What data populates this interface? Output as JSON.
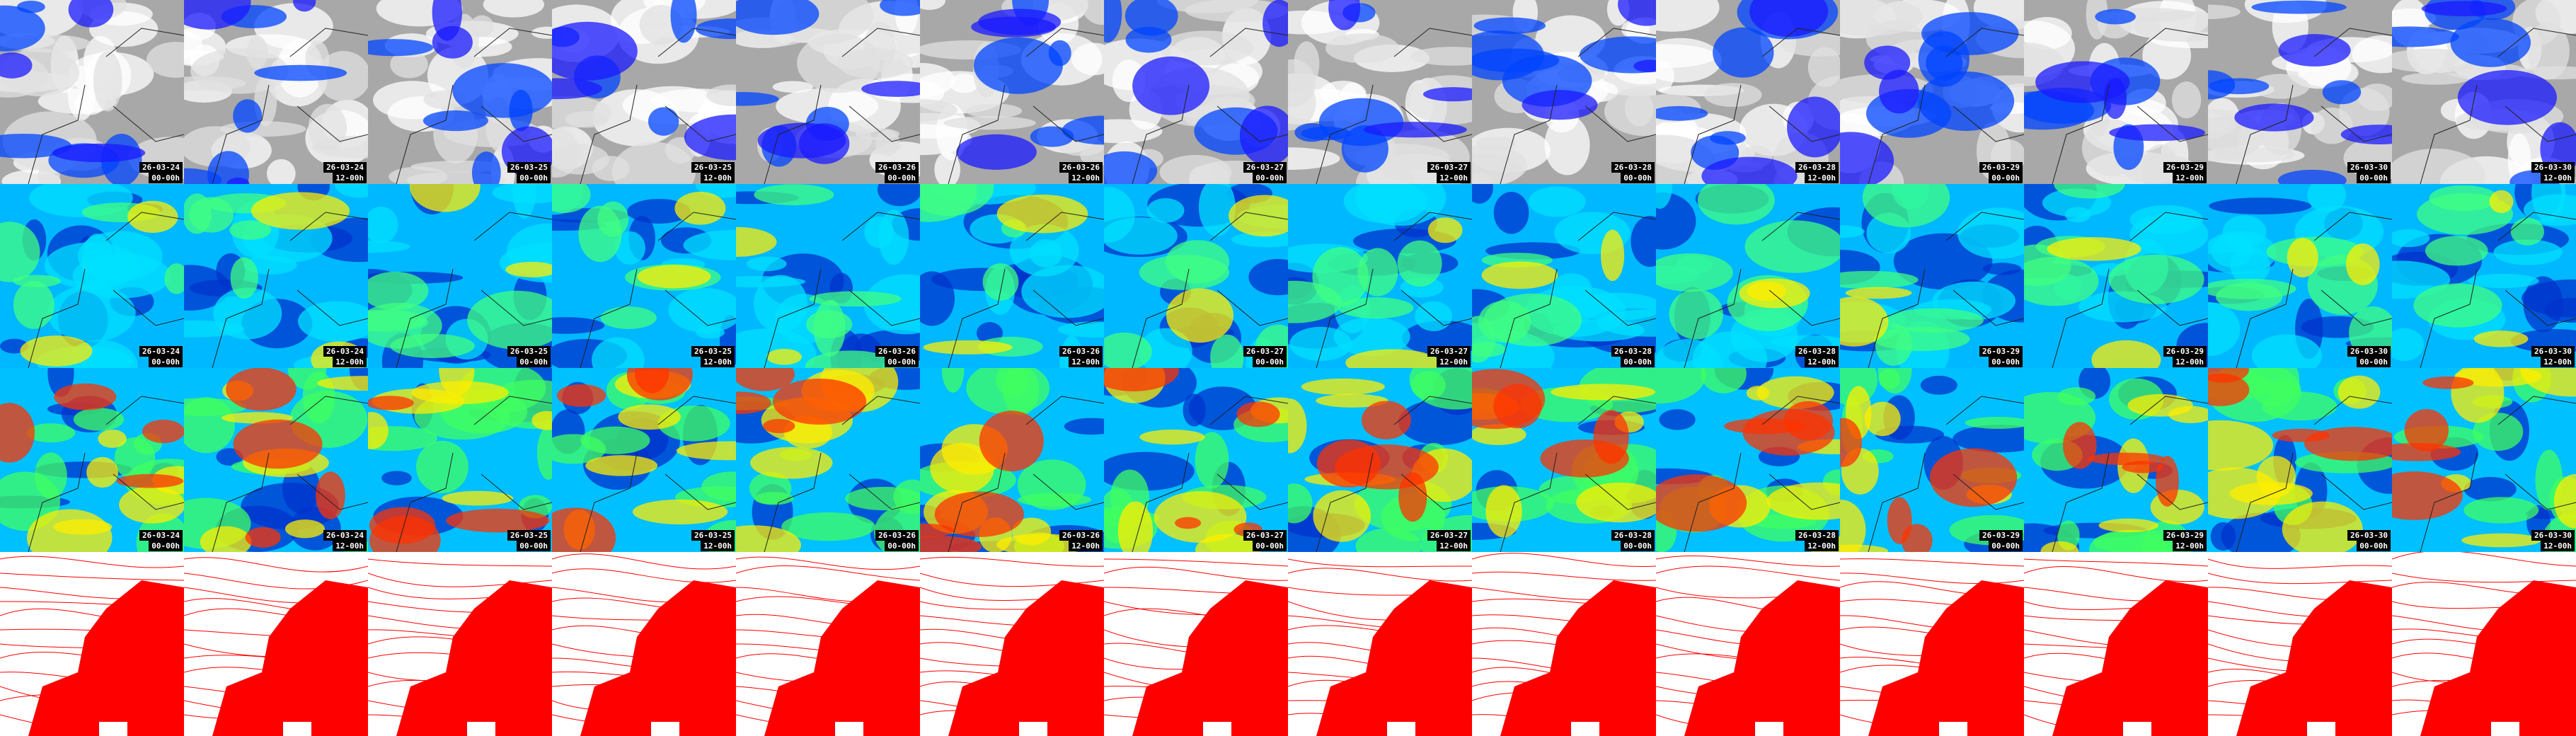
{
  "columns": [
    {
      "date": "26-03-24",
      "time": "00-00h"
    },
    {
      "date": "26-03-24",
      "time": "12-00h"
    },
    {
      "date": "26-03-25",
      "time": "00-00h"
    },
    {
      "date": "26-03-25",
      "time": "12-00h"
    },
    {
      "date": "26-03-26",
      "time": "00-00h"
    },
    {
      "date": "26-03-26",
      "time": "12-00h"
    },
    {
      "date": "26-03-27",
      "time": "00-00h"
    },
    {
      "date": "26-03-27",
      "time": "12-00h"
    },
    {
      "date": "26-03-28",
      "time": "00-00h"
    },
    {
      "date": "26-03-28",
      "time": "12-00h"
    },
    {
      "date": "26-03-29",
      "time": "00-00h"
    },
    {
      "date": "26-03-29",
      "time": "12-00h"
    },
    {
      "date": "26-03-30",
      "time": "00-00h"
    },
    {
      "date": "26-03-30",
      "time": "12-00h"
    }
  ]
}
